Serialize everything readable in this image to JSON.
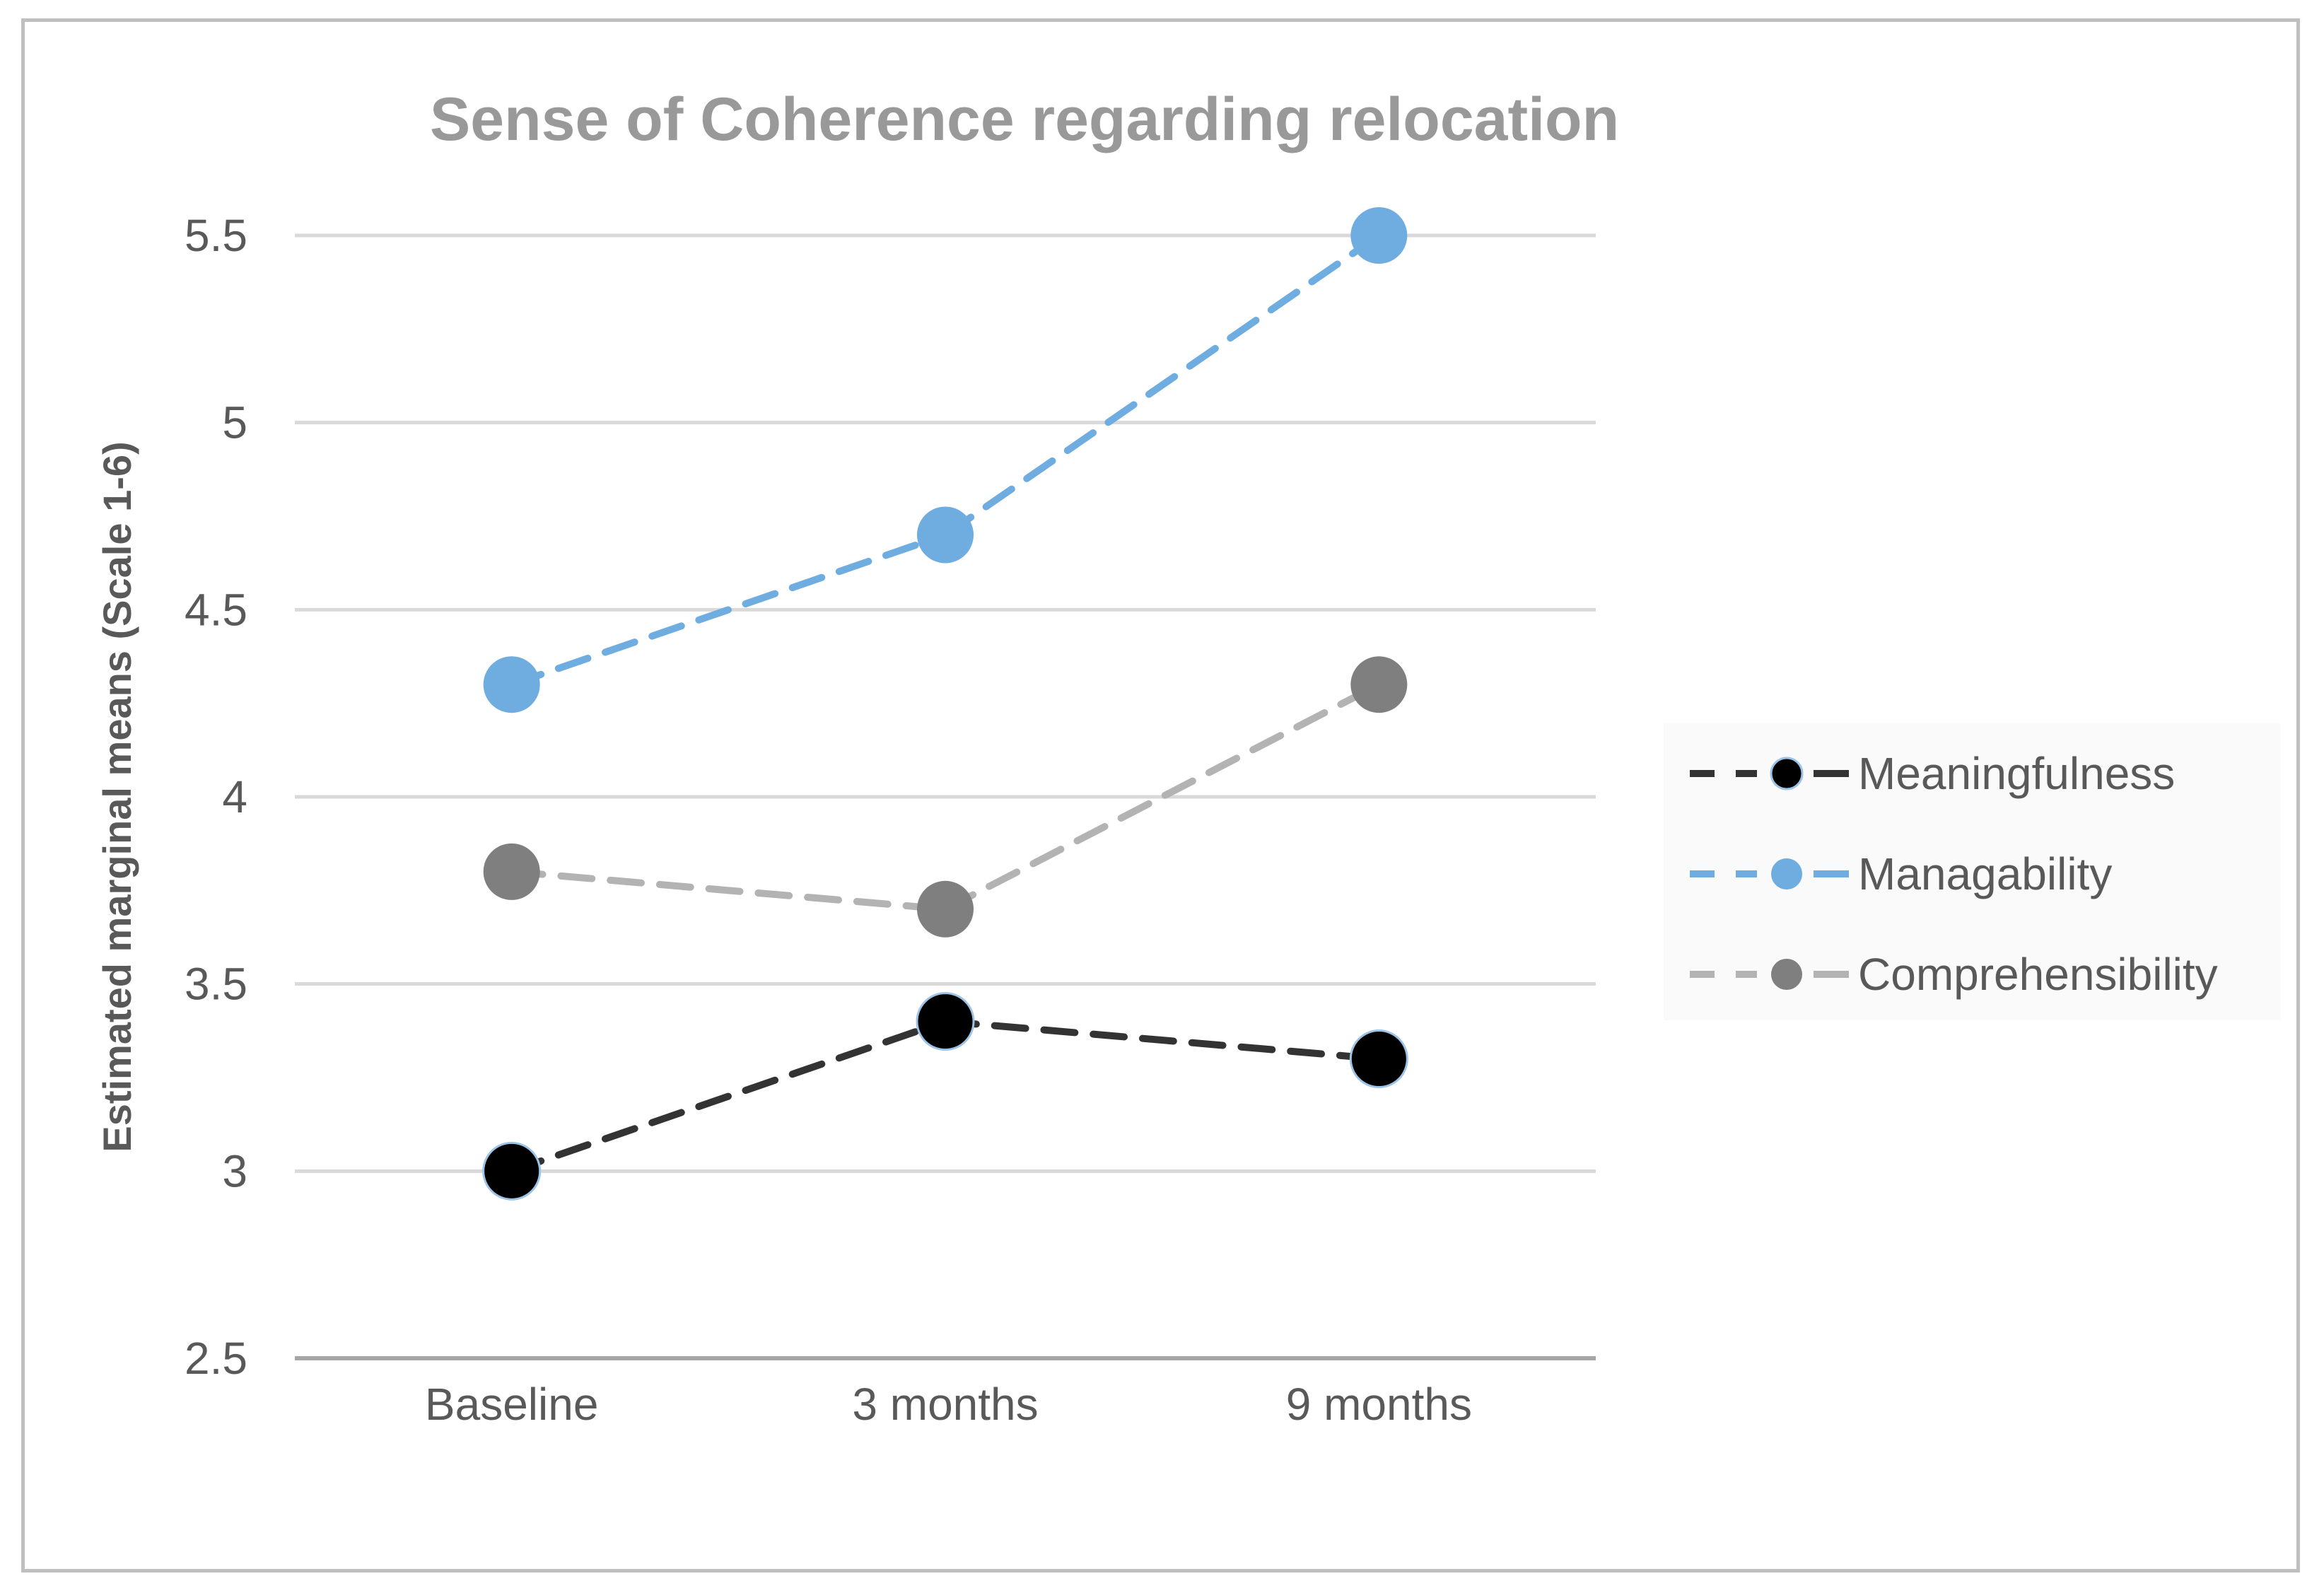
{
  "chart_data": {
    "type": "line",
    "title": "Sense of Coherence regarding relocation",
    "xlabel": "",
    "ylabel": "Estimated marginal means (Scale 1-6)",
    "categories": [
      "Baseline",
      "3 months",
      "9 months"
    ],
    "ylim": [
      2.5,
      5.5
    ],
    "yticks": [
      2.5,
      3,
      3.5,
      4,
      4.5,
      5,
      5.5
    ],
    "ytick_labels": [
      "2.5",
      "3",
      "3.5",
      "4",
      "4.5",
      "5",
      "5.5"
    ],
    "grid": true,
    "legend_position": "right",
    "series": [
      {
        "name": "Meaningfulness",
        "values": [
          3.0,
          3.4,
          3.3
        ],
        "color": "#000000",
        "line_color": "#333333",
        "line_style": "dashed"
      },
      {
        "name": "Managability",
        "values": [
          4.3,
          4.7,
          5.5
        ],
        "color": "#6fade0",
        "line_color": "#6fade0",
        "line_style": "dashed"
      },
      {
        "name": "Comprehensibility",
        "values": [
          3.8,
          3.7,
          4.3
        ],
        "color": "#7f7f7f",
        "line_color": "#b3b3b3",
        "line_style": "dashed"
      }
    ]
  }
}
